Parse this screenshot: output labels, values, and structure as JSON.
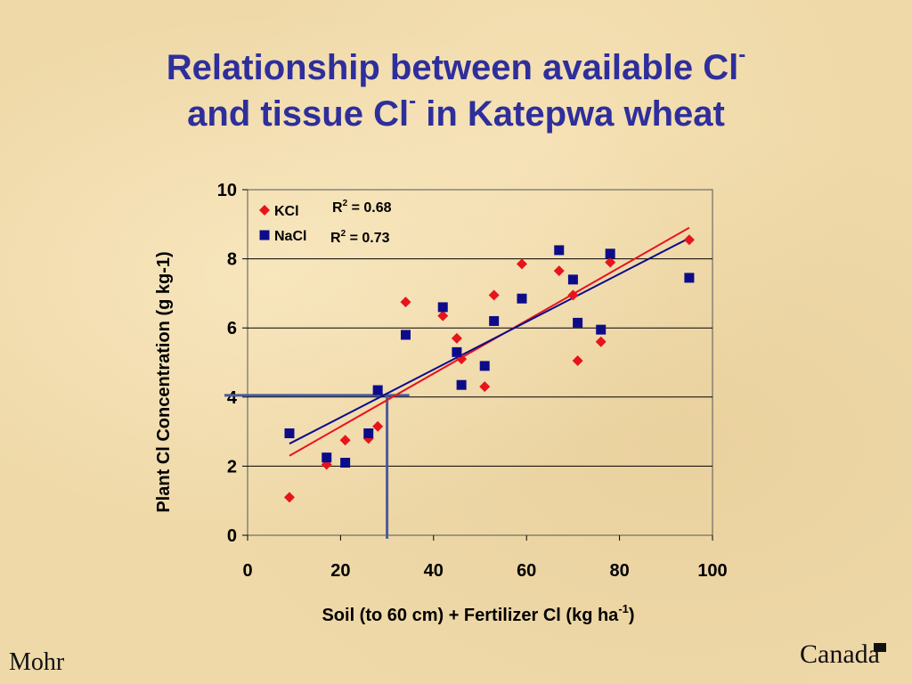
{
  "slide": {
    "title_line1": "Relationship between available Cl",
    "title_line2_a": "and tissue Cl",
    "title_line2_b": " in Katepwa wheat",
    "title_sup": "-",
    "author": "Mohr",
    "logo_text": "Canada"
  },
  "chart_data": {
    "type": "scatter",
    "xlabel": "Soil (to 60 cm) + Fertilizer Cl (kg ha",
    "xlabel_sup": "-1",
    "xlabel_end": ")",
    "ylabel": "Plant Cl Concentration (g kg-1)",
    "xlim": [
      0,
      100
    ],
    "ylim": [
      0,
      10
    ],
    "x_ticks": [
      "0",
      "20",
      "40",
      "60",
      "80",
      "100"
    ],
    "y_ticks": [
      "0",
      "2",
      "4",
      "6",
      "8",
      "10"
    ],
    "gridlines": "horizontal",
    "legend_position": "top-left",
    "series": [
      {
        "name": "KCl",
        "marker": "diamond",
        "color": "#e8141b",
        "points": [
          [
            9,
            1.1
          ],
          [
            17,
            2.05
          ],
          [
            21,
            2.75
          ],
          [
            26,
            2.8
          ],
          [
            28,
            3.15
          ],
          [
            34,
            6.75
          ],
          [
            42,
            6.35
          ],
          [
            45,
            5.7
          ],
          [
            46,
            5.1
          ],
          [
            51,
            4.3
          ],
          [
            53,
            6.95
          ],
          [
            59,
            7.85
          ],
          [
            67,
            7.65
          ],
          [
            70,
            6.95
          ],
          [
            71,
            5.05
          ],
          [
            76,
            5.6
          ],
          [
            78,
            7.9
          ],
          [
            95,
            8.55
          ]
        ],
        "trendline": [
          [
            9,
            2.3
          ],
          [
            95,
            8.9
          ]
        ],
        "r2_label": "R",
        "r2_value": " = 0.68"
      },
      {
        "name": "NaCl",
        "marker": "square",
        "color": "#0c0c8a",
        "points": [
          [
            9,
            2.95
          ],
          [
            17,
            2.25
          ],
          [
            21,
            2.1
          ],
          [
            26,
            2.95
          ],
          [
            28,
            4.2
          ],
          [
            34,
            5.8
          ],
          [
            42,
            6.6
          ],
          [
            45,
            5.3
          ],
          [
            46,
            4.35
          ],
          [
            51,
            4.9
          ],
          [
            53,
            6.2
          ],
          [
            59,
            6.85
          ],
          [
            67,
            8.25
          ],
          [
            70,
            7.4
          ],
          [
            71,
            6.15
          ],
          [
            76,
            5.95
          ],
          [
            78,
            8.15
          ],
          [
            95,
            7.45
          ]
        ],
        "trendline": [
          [
            9,
            2.65
          ],
          [
            95,
            8.6
          ]
        ],
        "r2_label": "R",
        "r2_value": " = 0.73"
      }
    ],
    "annotation_lines": {
      "color": "#4a5a9c",
      "x": 30,
      "y": 4.05
    }
  }
}
